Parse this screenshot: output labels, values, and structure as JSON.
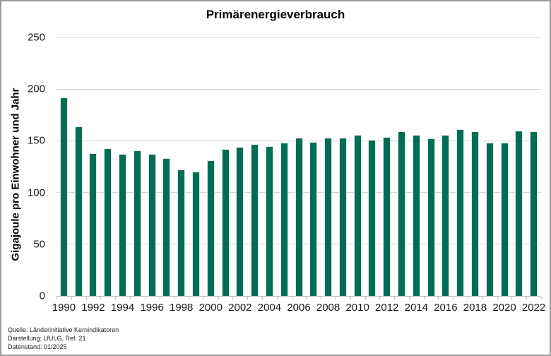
{
  "window": {
    "background_color": "#ffffff",
    "border_color": "#9a9a9a"
  },
  "chart_data": {
    "type": "bar",
    "title": "Primärenergieverbrauch",
    "xlabel": "",
    "ylabel": "Gigajoule pro Einwohner und Jahr",
    "bar_color": "#006E55",
    "gridline_color": "#d6d6d6",
    "axis_color": "#bfbfbf",
    "grid": true,
    "legend_position": "none",
    "ylim": [
      0,
      250
    ],
    "yticks": [
      0,
      50,
      100,
      150,
      200,
      250
    ],
    "xtick_labels": [
      "1990",
      "1992",
      "1994",
      "1996",
      "1998",
      "2000",
      "2002",
      "2004",
      "2006",
      "2008",
      "2010",
      "2012",
      "2014",
      "2016",
      "2018",
      "2020",
      "2022"
    ],
    "categories": [
      1990,
      1991,
      1992,
      1993,
      1994,
      1995,
      1996,
      1997,
      1998,
      1999,
      2000,
      2001,
      2002,
      2003,
      2004,
      2005,
      2006,
      2007,
      2008,
      2009,
      2010,
      2011,
      2012,
      2013,
      2014,
      2015,
      2016,
      2017,
      2018,
      2019,
      2020,
      2021,
      2022
    ],
    "values": [
      192,
      164,
      138,
      143,
      137,
      141,
      137,
      133,
      122,
      120,
      131,
      142,
      144,
      147,
      145,
      148,
      153,
      149,
      153,
      153,
      156,
      151,
      154,
      159,
      156,
      152,
      156,
      161,
      159,
      148,
      148,
      160,
      159
    ]
  },
  "footer": {
    "source": "Quelle: Länderinitiative Kernindikatoren",
    "attribution": "Darstellung: LfULG, Ref. 21",
    "data_date": "Datenstand: 01/2025"
  }
}
